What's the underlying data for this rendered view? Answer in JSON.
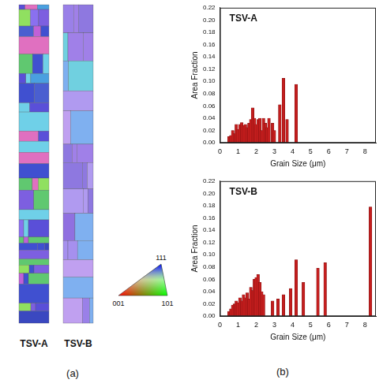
{
  "chart_data": [
    {
      "type": "bar",
      "title": "TSV-A",
      "x_label": "Grain Size (μm)",
      "y_label": "Area Fraction",
      "x": [
        0.5,
        0.6,
        0.7,
        0.8,
        0.9,
        1.0,
        1.1,
        1.2,
        1.3,
        1.4,
        1.5,
        1.6,
        1.7,
        1.8,
        1.9,
        2.0,
        2.1,
        2.2,
        2.3,
        2.4,
        2.5,
        2.6,
        2.7,
        2.9,
        3.0,
        3.3,
        3.5,
        3.7,
        4.2
      ],
      "values": [
        0.01,
        0.012,
        0.02,
        0.015,
        0.03,
        0.022,
        0.03,
        0.033,
        0.028,
        0.03,
        0.025,
        0.032,
        0.038,
        0.057,
        0.04,
        0.03,
        0.038,
        0.04,
        0.02,
        0.04,
        0.032,
        0.025,
        0.04,
        0.032,
        0.02,
        0.062,
        0.105,
        0.038,
        0.095
      ],
      "color": "#c41e1e",
      "xlim": [
        0,
        8.6
      ],
      "xticks": [
        0,
        1,
        2,
        3,
        4,
        5,
        6,
        7,
        8
      ],
      "ylim": [
        0,
        0.22
      ],
      "yticks": [
        {
          "value": 0,
          "label": "0.00"
        },
        {
          "value": 0.02,
          "label": "0.02"
        },
        {
          "value": 0.04,
          "label": "0.04"
        },
        {
          "value": 0.06,
          "label": "0.06"
        },
        {
          "value": 0.08,
          "label": "0.08"
        },
        {
          "value": 0.1,
          "label": "0.10"
        },
        {
          "value": 0.12,
          "label": "0.12"
        },
        {
          "value": 0.14,
          "label": "0.14"
        },
        {
          "value": 0.16,
          "label": "0.16"
        },
        {
          "value": 0.18,
          "label": "0.18"
        },
        {
          "value": 0.2,
          "label": "0.20"
        },
        {
          "value": 0.22,
          "label": "0.22"
        }
      ],
      "grid": false
    },
    {
      "type": "bar",
      "title": "TSV-B",
      "x_label": "Grain Size (μm)",
      "y_label": "Area Fraction",
      "x": [
        0.5,
        0.6,
        0.7,
        0.8,
        0.9,
        1.0,
        1.1,
        1.2,
        1.3,
        1.4,
        1.5,
        1.6,
        1.7,
        1.8,
        1.9,
        2.0,
        2.1,
        2.2,
        2.3,
        2.4,
        2.9,
        3.2,
        3.5,
        3.9,
        4.2,
        4.6,
        5.4,
        5.8,
        8.3
      ],
      "values": [
        0.008,
        0.012,
        0.018,
        0.02,
        0.025,
        0.022,
        0.03,
        0.025,
        0.035,
        0.03,
        0.038,
        0.028,
        0.047,
        0.042,
        0.06,
        0.063,
        0.068,
        0.055,
        0.04,
        0.035,
        0.025,
        0.028,
        0.035,
        0.045,
        0.092,
        0.055,
        0.078,
        0.087,
        0.178
      ],
      "color": "#c41e1e",
      "xlim": [
        0,
        8.6
      ],
      "xticks": [
        0,
        1,
        2,
        3,
        4,
        5,
        6,
        7,
        8
      ],
      "ylim": [
        0,
        0.22
      ],
      "yticks": [
        {
          "value": 0,
          "label": "0.00"
        },
        {
          "value": 0.02,
          "label": "0.02"
        },
        {
          "value": 0.04,
          "label": "0.04"
        },
        {
          "value": 0.06,
          "label": "0.06"
        },
        {
          "value": 0.08,
          "label": "0.08"
        },
        {
          "value": 0.1,
          "label": "0.10"
        },
        {
          "value": 0.12,
          "label": "0.12"
        },
        {
          "value": 0.14,
          "label": "0.14"
        },
        {
          "value": 0.16,
          "label": "0.16"
        },
        {
          "value": 0.18,
          "label": "0.18"
        },
        {
          "value": 0.2,
          "label": "0.20"
        },
        {
          "value": 0.22,
          "label": "0.22"
        }
      ],
      "grid": false
    }
  ],
  "figure": {
    "maps": [
      "TSV-A",
      "TSV-B"
    ],
    "color_key": {
      "top": "111",
      "left": "001",
      "right": "101"
    },
    "panel_labels": [
      "(a)",
      "(b)"
    ]
  }
}
